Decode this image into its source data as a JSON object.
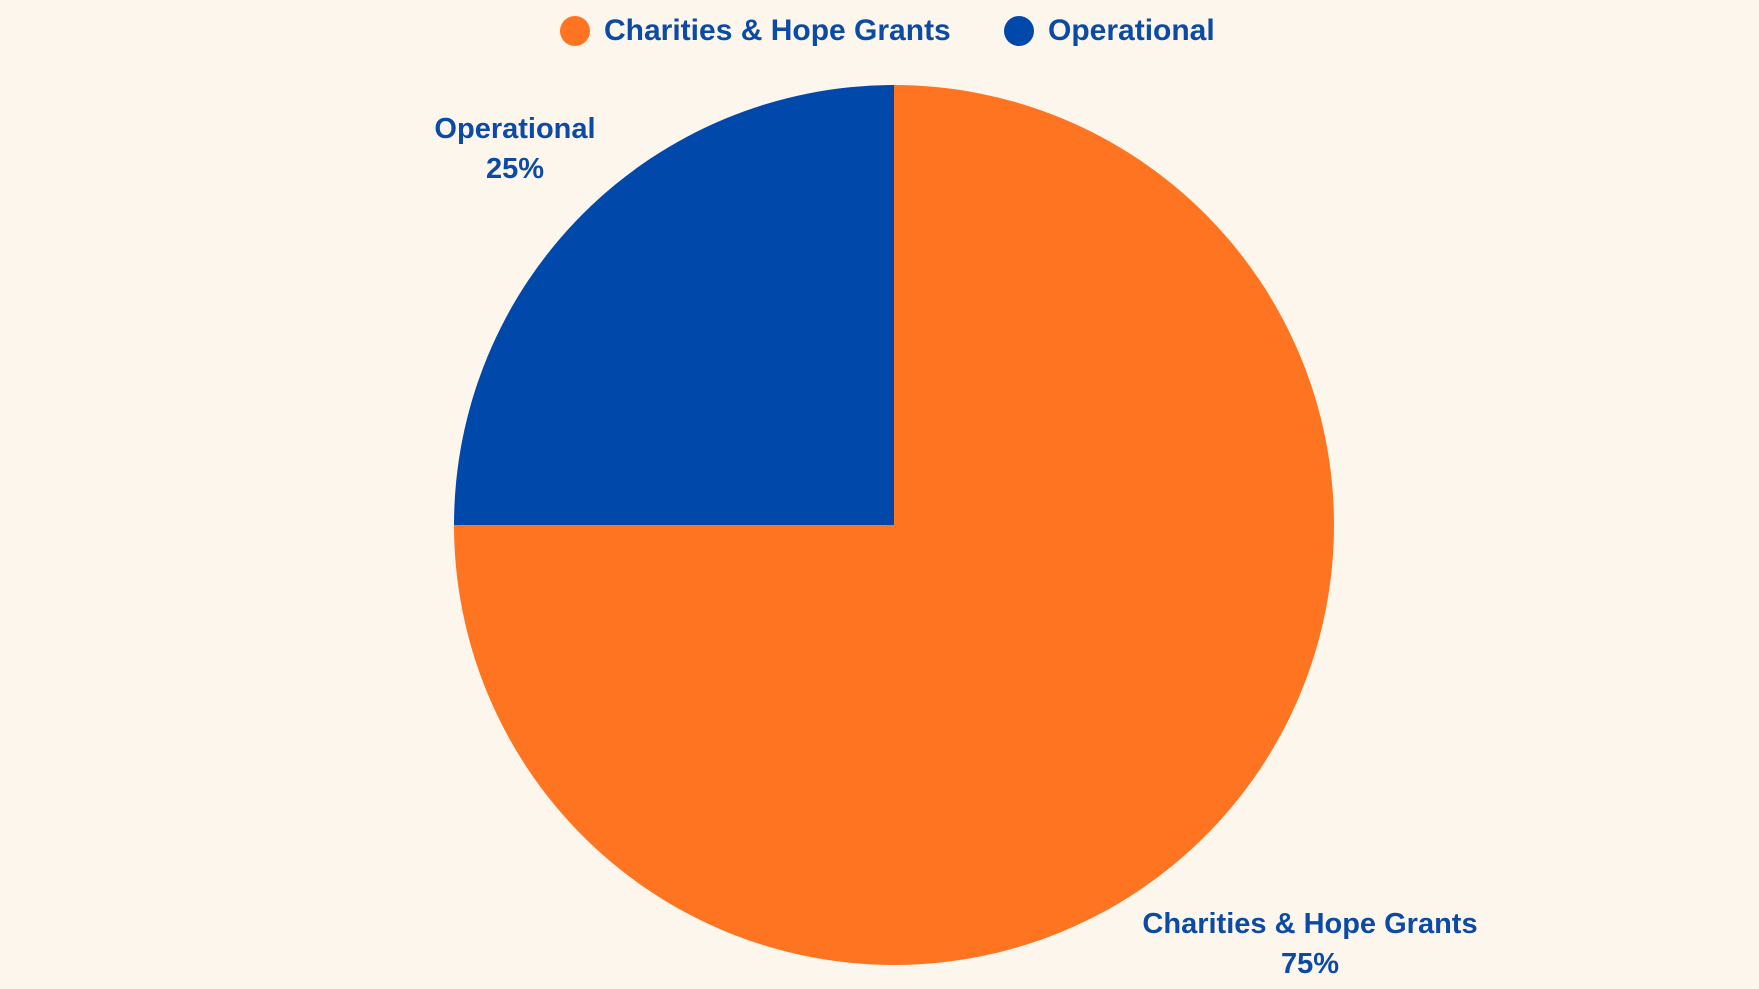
{
  "chart_data": {
    "type": "pie",
    "title": "",
    "legend": "top",
    "start_angle_deg": 90,
    "direction": "clockwise",
    "slices": [
      {
        "label": "Charities & Hope Grants",
        "value": 75,
        "display": "75%",
        "color": "#ff7420"
      },
      {
        "label": "Operational",
        "value": 25,
        "display": "25%",
        "color": "#0049ab"
      }
    ]
  },
  "colors": {
    "background": "#fdf6ec",
    "text": "#0b4ba5"
  }
}
